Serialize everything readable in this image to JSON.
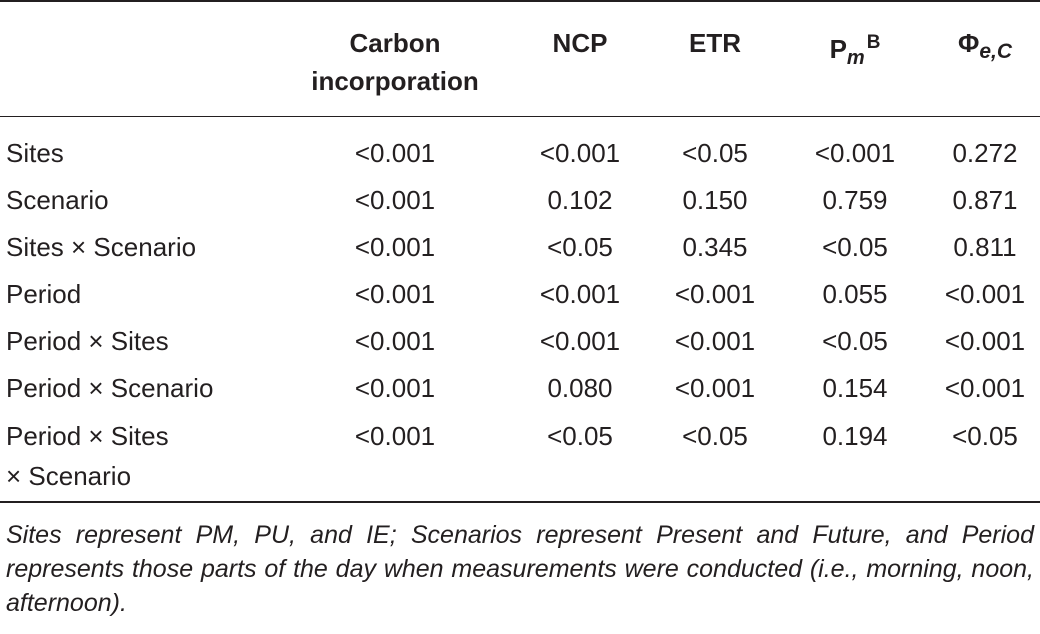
{
  "columns": {
    "carbon_line1": "Carbon",
    "carbon_line2": "incorporation",
    "ncp": "NCP",
    "etr": "ETR",
    "pm_base": "P",
    "pm_sub": "m",
    "pm_sup": "B",
    "phi_base": "Φ",
    "phi_sub": "e,C"
  },
  "rows": [
    {
      "label": "Sites",
      "carbon": "<0.001",
      "ncp": "<0.001",
      "etr": "<0.05",
      "pm": "<0.001",
      "phi": "0.272"
    },
    {
      "label": "Scenario",
      "carbon": "<0.001",
      "ncp": "0.102",
      "etr": "0.150",
      "pm": "0.759",
      "phi": "0.871"
    },
    {
      "label": "Sites × Scenario",
      "carbon": "<0.001",
      "ncp": "<0.05",
      "etr": "0.345",
      "pm": "<0.05",
      "phi": "0.811"
    },
    {
      "label": "Period",
      "carbon": "<0.001",
      "ncp": "<0.001",
      "etr": "<0.001",
      "pm": "0.055",
      "phi": "<0.001"
    },
    {
      "label": "Period × Sites",
      "carbon": "<0.001",
      "ncp": "<0.001",
      "etr": "<0.001",
      "pm": "<0.05",
      "phi": "<0.001"
    },
    {
      "label": "Period × Scenario",
      "carbon": "<0.001",
      "ncp": "0.080",
      "etr": "<0.001",
      "pm": "0.154",
      "phi": "<0.001"
    },
    {
      "label": "Period × Sites",
      "label_line2": "× Scenario",
      "carbon": "<0.001",
      "ncp": "<0.05",
      "etr": "<0.05",
      "pm": "0.194",
      "phi": "<0.05"
    }
  ],
  "footnote": "Sites represent PM, PU, and IE; Scenarios represent Present and Future, and Period represents those parts of the day when measurements were conducted (i.e., morning, noon, afternoon)."
}
